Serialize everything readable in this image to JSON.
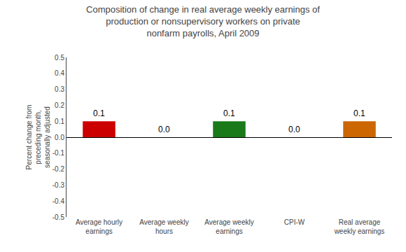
{
  "chart_data": {
    "type": "bar",
    "title": "Composition of change in real average weekly earnings of\nproduction or nonsupervisory workers on private\nnonfarm payrolls, April 2009",
    "ylabel": "Percent change from\npreceding month,\nseasonally adjusted",
    "categories": [
      "Average hourly\nearnings",
      "Average weekly\nhours",
      "Average weekly\nearnings",
      "CPI-W",
      "Real average\nweekly earnings"
    ],
    "values": [
      0.1,
      0.0,
      0.1,
      0.0,
      0.1
    ],
    "value_labels": [
      "0.1",
      "0.0",
      "0.1",
      "0.0",
      "0.1"
    ],
    "data_labels": true,
    "colors": [
      "#cc0000",
      "#ffffff",
      "#1a7a1a",
      "#ffffff",
      "#cc6600"
    ],
    "ylim": [
      -0.5,
      0.5
    ],
    "yticks": [
      -0.5,
      -0.4,
      -0.3,
      -0.2,
      -0.1,
      {
        "value": 0.0,
        "label": "0.0"
      },
      0.1,
      0.2,
      0.3,
      0.4,
      0.5
    ],
    "grid": false
  }
}
